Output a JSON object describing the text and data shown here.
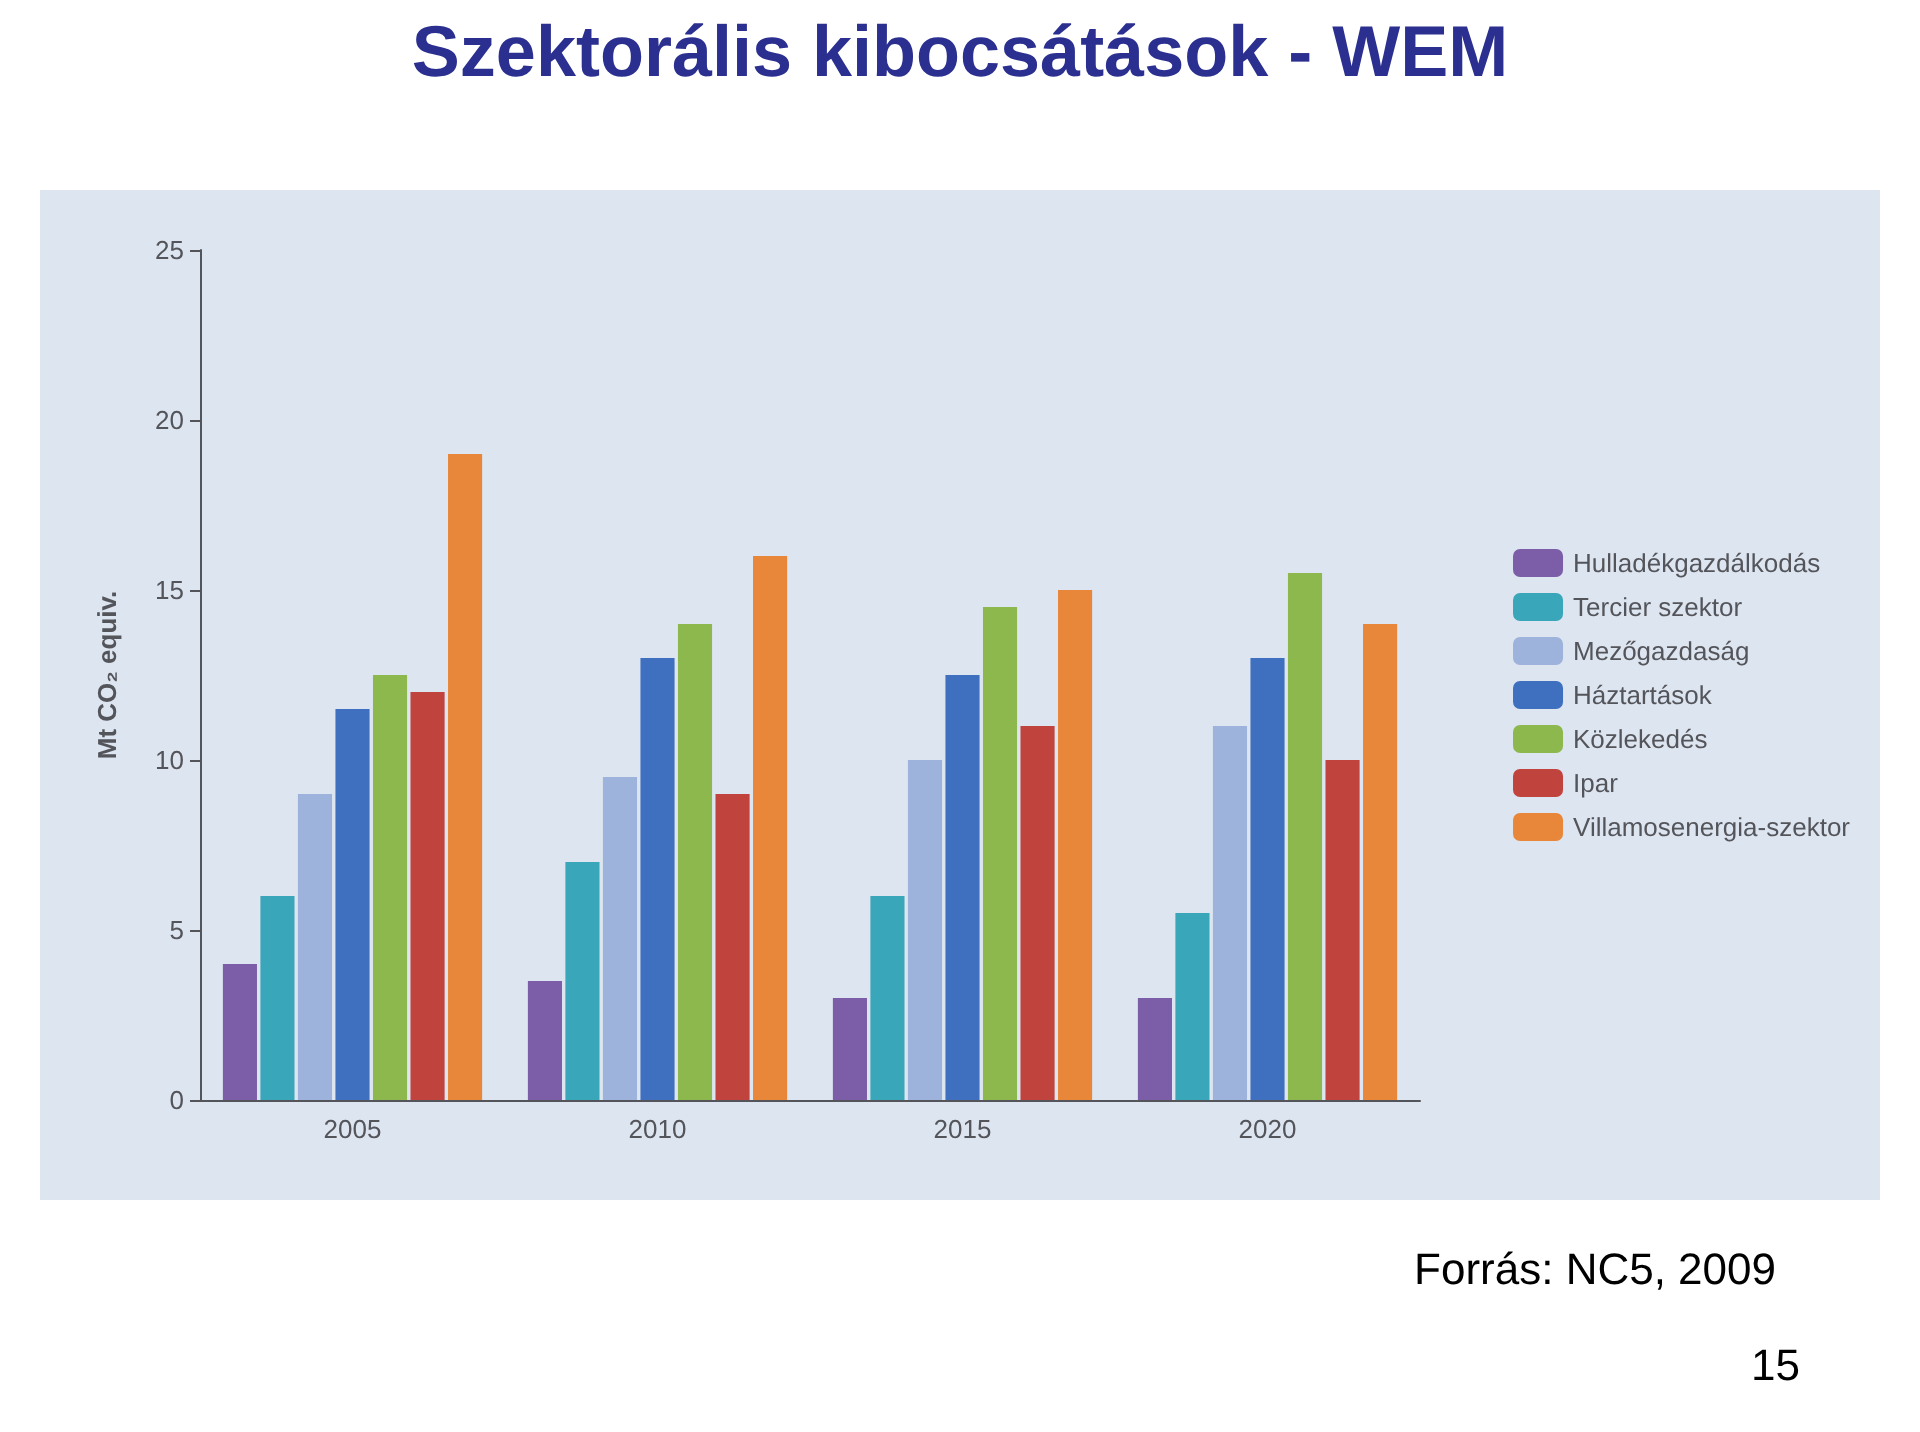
{
  "chart_data": {
    "type": "bar",
    "title": "Szektorális kibocsátások - WEM",
    "ylabel": "Mt CO₂ equiv.",
    "categories": [
      "2005",
      "2010",
      "2015",
      "2020"
    ],
    "series": [
      {
        "name": "Hulladékgazdálkodás",
        "color": "#7b5ea7",
        "values": [
          4,
          3.5,
          3,
          3
        ]
      },
      {
        "name": "Tercier szektor",
        "color": "#3aa6b9",
        "values": [
          6,
          7,
          6,
          5.5
        ]
      },
      {
        "name": "Mezőgazdaság",
        "color": "#9db3dc",
        "values": [
          9,
          9.5,
          10,
          11
        ]
      },
      {
        "name": "Háztartások",
        "color": "#3f6fbf",
        "values": [
          11.5,
          13,
          12.5,
          13
        ]
      },
      {
        "name": "Közlekedés",
        "color": "#8cb84e",
        "values": [
          12.5,
          14,
          14.5,
          15.5
        ]
      },
      {
        "name": "Ipar",
        "color": "#c0443d",
        "values": [
          12,
          9,
          11,
          10
        ]
      },
      {
        "name": "Villamosenergia-szektor",
        "color": "#e8873a",
        "values": [
          19,
          16,
          15,
          14
        ]
      }
    ],
    "ylim": [
      0,
      25
    ],
    "yticks": [
      0,
      5,
      10,
      15,
      20,
      25
    ],
    "grid": false,
    "legend": "right",
    "annotations": [
      "Forrás: NC5, 2009",
      "15"
    ]
  }
}
